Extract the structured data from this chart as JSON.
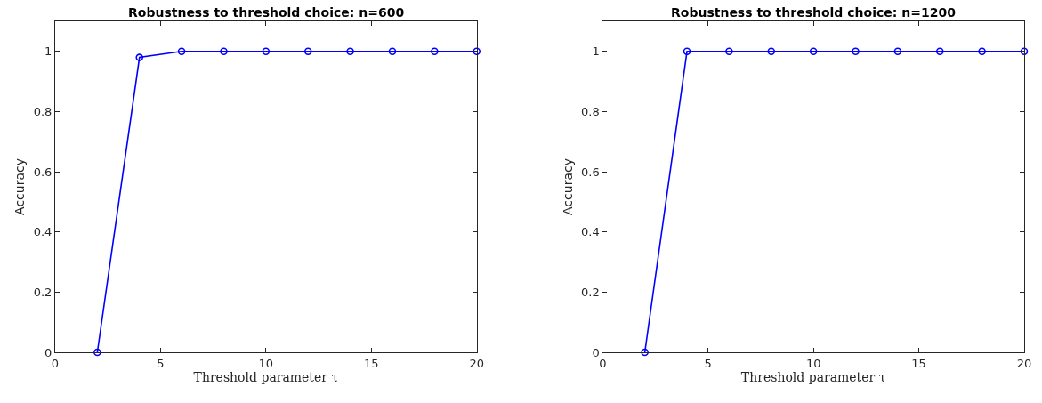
{
  "chart_data": [
    {
      "type": "line",
      "title": "Robustness to threshold choice: n=600",
      "xlabel": "Threshold parameter τ",
      "ylabel": "Accuracy",
      "x": [
        2,
        4,
        6,
        8,
        10,
        12,
        14,
        16,
        18,
        20
      ],
      "series": [
        {
          "color": "#0000ff",
          "values": [
            0,
            0.98,
            1,
            1,
            1,
            1,
            1,
            1,
            1,
            1
          ]
        }
      ],
      "xlim": [
        0,
        20
      ],
      "xticks": [
        0,
        5,
        10,
        15,
        20
      ],
      "ylim": [
        0,
        1.1
      ],
      "yticks": [
        0,
        0.2,
        0.4,
        0.6,
        0.8,
        1
      ],
      "marker": "circle",
      "line_style": "solid"
    },
    {
      "type": "line",
      "title": "Robustness to threshold choice: n=1200",
      "xlabel": "Threshold parameter τ",
      "ylabel": "Accuracy",
      "x": [
        2,
        4,
        6,
        8,
        10,
        12,
        14,
        16,
        18,
        20
      ],
      "series": [
        {
          "color": "#0000ff",
          "values": [
            0,
            1,
            1,
            1,
            1,
            1,
            1,
            1,
            1,
            1
          ]
        }
      ],
      "xlim": [
        0,
        20
      ],
      "xticks": [
        0,
        5,
        10,
        15,
        20
      ],
      "ylim": [
        0,
        1.1
      ],
      "yticks": [
        0,
        0.2,
        0.4,
        0.6,
        0.8,
        1
      ],
      "marker": "circle",
      "line_style": "solid"
    }
  ]
}
